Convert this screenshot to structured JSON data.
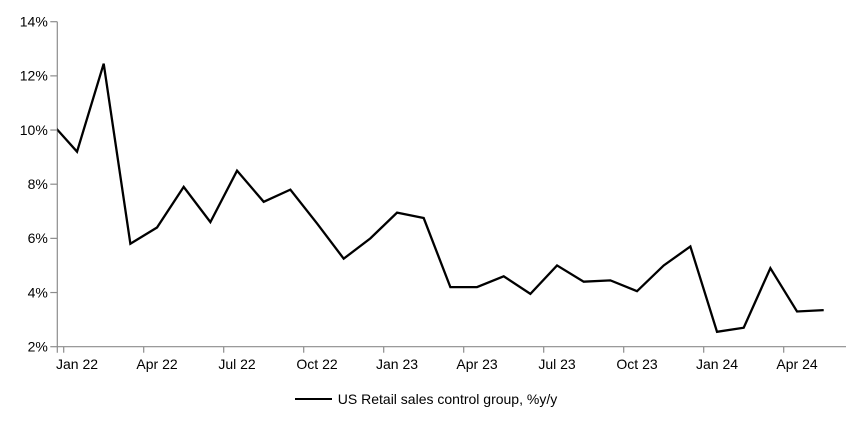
{
  "chart_data": {
    "type": "line",
    "title": "",
    "xlabel": "",
    "ylabel": "",
    "ylim": [
      2,
      14
    ],
    "y_tick_step": 2,
    "grid": false,
    "legend_position": "bottom-center",
    "y_tick_labels": [
      "2%",
      "4%",
      "6%",
      "8%",
      "10%",
      "12%",
      "14%"
    ],
    "x_tick_labels": [
      "Jan 22",
      "Apr 22",
      "Jul 22",
      "Oct 22",
      "Jan 23",
      "Apr 23",
      "Jul 23",
      "Oct 23",
      "Jan 24",
      "Apr 24"
    ],
    "series": [
      {
        "name": "US Retail sales control group, %y/y",
        "color": "#000000",
        "months": [
          "Dec 21",
          "Jan 22",
          "Feb 22",
          "Mar 22",
          "Apr 22",
          "May 22",
          "Jun 22",
          "Jul 22",
          "Aug 22",
          "Sep 22",
          "Oct 22",
          "Nov 22",
          "Dec 22",
          "Jan 23",
          "Feb 23",
          "Mar 23",
          "Apr 23",
          "May 23",
          "Jun 23",
          "Jul 23",
          "Aug 23",
          "Sep 23",
          "Oct 23",
          "Nov 23",
          "Dec 23",
          "Jan 24",
          "Feb 24",
          "Mar 24",
          "Apr 24",
          "May 24"
        ],
        "values": [
          10.3,
          9.2,
          12.45,
          5.8,
          6.4,
          7.9,
          6.6,
          8.5,
          7.35,
          7.8,
          6.55,
          5.25,
          6.0,
          6.95,
          6.75,
          4.2,
          4.2,
          4.6,
          3.95,
          5.0,
          4.4,
          4.45,
          4.05,
          5.0,
          5.7,
          2.55,
          2.7,
          4.9,
          3.3,
          3.35
        ]
      }
    ]
  },
  "legend": {
    "label": "US Retail sales control group, %y/y"
  },
  "colors": {
    "line": "#000000",
    "axis": "#8c8c8c",
    "text": "#000000",
    "background": "#ffffff"
  }
}
